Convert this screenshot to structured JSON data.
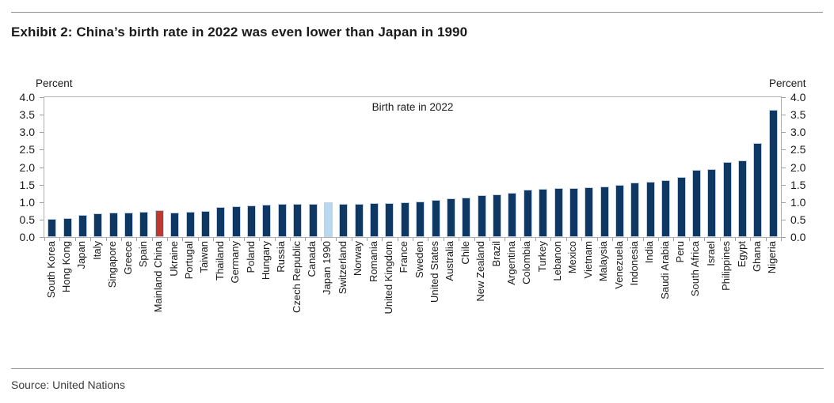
{
  "page": {
    "title": "Exhibit 2: China’s birth rate in 2022 was even lower than Japan in 1990",
    "source": "Source: United Nations",
    "axis_label_left": "Percent",
    "axis_label_right": "Percent"
  },
  "chart_data": {
    "type": "bar",
    "title": "Exhibit 2: China’s birth rate in 2022 was even lower than Japan in 1990",
    "annotation": "Birth rate in 2022",
    "ylabel": "Percent",
    "ylabel_right": "Percent",
    "unit": "percent",
    "ylim": [
      0,
      4
    ],
    "yticks": [
      "4.0",
      "3.5",
      "3.0",
      "2.5",
      "2.0",
      "1.5",
      "1.0",
      "0.5",
      "0.0"
    ],
    "grid": false,
    "legend": "none",
    "categories": [
      "South Korea",
      "Hong Kong",
      "Japan",
      "Italy",
      "Singapore",
      "Greece",
      "Spain",
      "Mainland China",
      "Ukraine",
      "Portugal",
      "Taiwan",
      "Thailand",
      "Germany",
      "Poland",
      "Hungary",
      "Russia",
      "Czech Republic",
      "Canada",
      "Japan 1990",
      "Switzerland",
      "Norway",
      "Romania",
      "United Kingdom",
      "France",
      "Sweden",
      "United States",
      "Australia",
      "Chile",
      "New Zealand",
      "Brazil",
      "Argentina",
      "Colombia",
      "Turkey",
      "Lebanon",
      "Mexico",
      "Vietnam",
      "Malaysia",
      "Venezuela",
      "Indonesia",
      "India",
      "Saudi Arabia",
      "Peru",
      "South Africa",
      "Israel",
      "Philippines",
      "Egypt",
      "Ghana",
      "Nigeria"
    ],
    "values": [
      0.52,
      0.54,
      0.64,
      0.67,
      0.69,
      0.71,
      0.72,
      0.76,
      0.71,
      0.72,
      0.74,
      0.85,
      0.88,
      0.91,
      0.93,
      0.94,
      0.95,
      0.95,
      1.0,
      0.96,
      0.96,
      0.97,
      0.98,
      1.0,
      1.02,
      1.06,
      1.1,
      1.14,
      1.19,
      1.23,
      1.26,
      1.35,
      1.37,
      1.4,
      1.41,
      1.42,
      1.45,
      1.5,
      1.55,
      1.58,
      1.63,
      1.72,
      1.92,
      1.94,
      2.15,
      2.19,
      2.7,
      3.65
    ],
    "bar_color_default": "#0f3763",
    "highlights": [
      {
        "index": 7,
        "category": "Mainland China",
        "color": "#c0392e"
      },
      {
        "index": 18,
        "category": "Japan 1990",
        "color": "#b9d8f0"
      }
    ],
    "frame_color": "#b1b1b1",
    "tick_color": "#9f9f9f",
    "text_color": "#1a1a1a"
  }
}
